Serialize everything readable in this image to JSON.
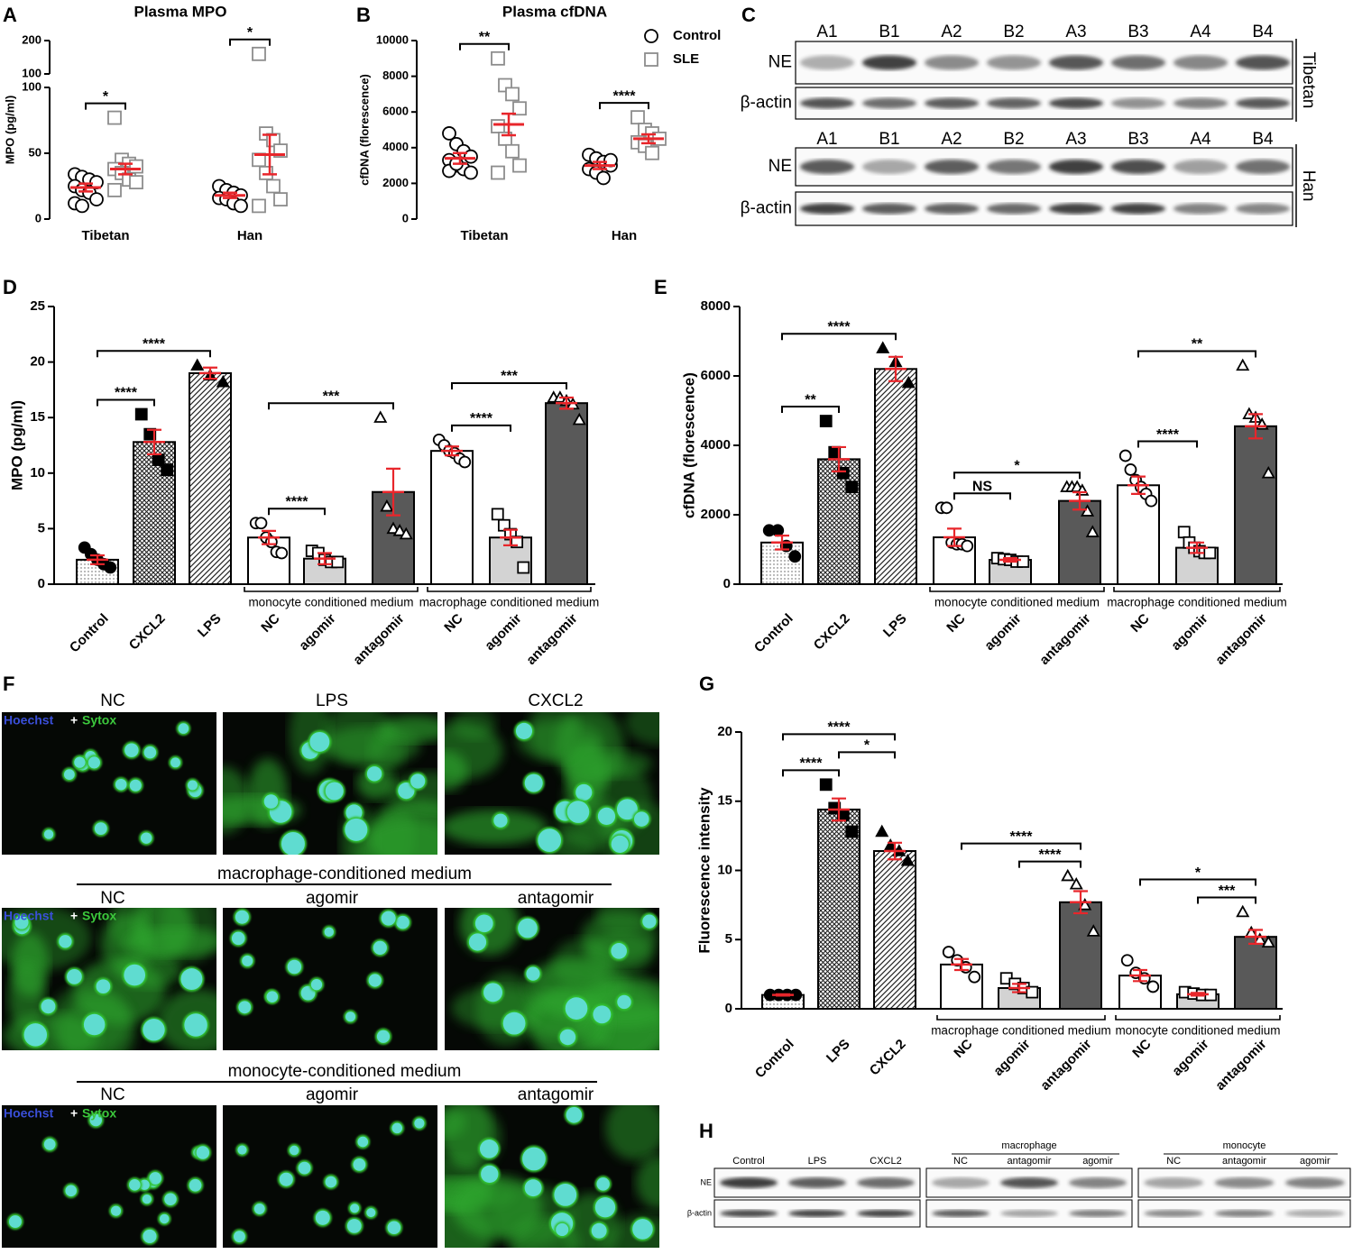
{
  "chart_data": [
    {
      "panel": "A",
      "type": "dot-plot",
      "title": "Plasma MPO",
      "y_label": "MPO (pg/ml)",
      "categories": [
        "Tibetan",
        "Han"
      ],
      "series": [
        {
          "color": "#000000",
          "marker": "open-circle",
          "values": [
            24,
            18
          ],
          "errors": [
            3,
            2
          ],
          "points": [
            [
              34,
              32,
              30,
              28,
              25,
              22,
              20,
              15,
              12,
              10
            ],
            [
              25,
              22,
              20,
              18,
              16,
              15,
              12,
              10
            ]
          ]
        },
        {
          "color": "#8c8c8c",
          "marker": "open-square",
          "values": [
            38,
            49
          ],
          "errors": [
            4,
            15
          ],
          "points": [
            [
              77,
              45,
              42,
              40,
              38,
              35,
              30,
              28,
              22
            ],
            [
              160,
              65,
              60,
              52,
              45,
              35,
              25,
              15,
              10
            ]
          ]
        }
      ],
      "mean_color": "#e8262b",
      "ylim": [
        0,
        100
      ],
      "yticks": [
        0,
        50,
        100
      ],
      "break_ylim": [
        100,
        200
      ],
      "break_yticks": [
        100,
        200
      ],
      "brackets": [
        {
          "category": 0,
          "label": "*"
        },
        {
          "category": 1,
          "label": "*"
        }
      ]
    },
    {
      "panel": "B",
      "type": "dot-plot",
      "title": "Plasma cfDNA",
      "y_label": "cfDNA (florescence)",
      "categories": [
        "Tibetan",
        "Han"
      ],
      "series": [
        {
          "name": "Control",
          "color": "#000000",
          "marker": "open-circle",
          "values": [
            3400,
            3000
          ],
          "errors": [
            300,
            200
          ],
          "points": [
            [
              4800,
              4200,
              3800,
              3500,
              3300,
              3000,
              2800,
              2600,
              2700,
              3100
            ],
            [
              3600,
              3400,
              3200,
              3000,
              2800,
              2600,
              2300,
              3300
            ]
          ]
        },
        {
          "name": "SLE",
          "color": "#8c8c8c",
          "marker": "open-square",
          "values": [
            5300,
            4500
          ],
          "errors": [
            600,
            250
          ],
          "points": [
            [
              9000,
              7500,
              7000,
              6200,
              5200,
              4500,
              3800,
              3000,
              2600
            ],
            [
              5700,
              5000,
              4800,
              4500,
              4300,
              4100,
              3700
            ]
          ]
        }
      ],
      "mean_color": "#e8262b",
      "legend": "upper right",
      "ylim": [
        0,
        10000
      ],
      "yticks": [
        0,
        2000,
        4000,
        6000,
        8000,
        10000
      ],
      "brackets": [
        {
          "category": 0,
          "label": "**"
        },
        {
          "category": 1,
          "label": "****"
        }
      ]
    },
    {
      "panel": "D",
      "type": "bar",
      "y_label": "MPO (pg/ml)",
      "categories": [
        "Control",
        "CXCL2",
        "LPS",
        "NC",
        "agomir",
        "antagomir",
        "NC",
        "agomir",
        "antagomir"
      ],
      "values": [
        2.2,
        12.8,
        19,
        4.2,
        2.3,
        8.3,
        12,
        4.2,
        16.3
      ],
      "errors": [
        0.4,
        1.1,
        0.5,
        0.6,
        0.5,
        2.1,
        0.4,
        0.7,
        0.5
      ],
      "points": [
        [
          3.3,
          2.7,
          2.2,
          1.8,
          1.5
        ],
        [
          15.3,
          13.5,
          11.2,
          10.3
        ],
        [
          19.7,
          18.8,
          18.2
        ],
        [
          5.5,
          5.5,
          4.2,
          3.8,
          2.9,
          2.8
        ],
        [
          3,
          2.8,
          2.2,
          2,
          2
        ],
        [
          15,
          7,
          5,
          4.8,
          4.5
        ],
        [
          13,
          12.5,
          12,
          11.8,
          11.3,
          11
        ],
        [
          6.3,
          5.3,
          4.5,
          3.8,
          1.5
        ],
        [
          16.8,
          16.8,
          16.5,
          16.2,
          14.8
        ]
      ],
      "markers": [
        "filled-circle",
        "filled-square",
        "filled-triangle",
        "open-circle",
        "open-square",
        "open-triangle",
        "open-circle",
        "open-square",
        "open-triangle"
      ],
      "colors": [
        "#ffffff",
        "#ffffff",
        "#ffffff",
        "#ffffff",
        "#d3d3d3",
        "#595959",
        "#ffffff",
        "#d3d3d3",
        "#595959"
      ],
      "patterns": [
        "dots",
        "crosshatch",
        "hatch",
        "none",
        "none",
        "none",
        "none",
        "none",
        "none"
      ],
      "error_color": "#e8262b",
      "ylim": [
        0,
        25
      ],
      "yticks": [
        0,
        5,
        10,
        15,
        20,
        25
      ],
      "groups": [
        {
          "label": "monocyte conditioned medium",
          "from": 3,
          "to": 5
        },
        {
          "label": "macrophage conditioned medium",
          "from": 6,
          "to": 8
        }
      ],
      "brackets": [
        {
          "from": 0,
          "to": 1,
          "label": "****"
        },
        {
          "from": 0,
          "to": 2,
          "label": "****"
        },
        {
          "from": 3,
          "to": 4,
          "label": "****"
        },
        {
          "from": 3,
          "to": 5,
          "label": "***"
        },
        {
          "from": 6,
          "to": 7,
          "label": "****"
        },
        {
          "from": 6,
          "to": 8,
          "label": "***"
        }
      ]
    },
    {
      "panel": "E",
      "type": "bar",
      "y_label": "cfDNA (florescence)",
      "categories": [
        "Control",
        "CXCL2",
        "LPS",
        "NC",
        "agomir",
        "antagomir",
        "NC",
        "agomir",
        "antagomir"
      ],
      "values": [
        1200,
        3600,
        6200,
        1350,
        700,
        2400,
        2850,
        1050,
        4550
      ],
      "errors": [
        200,
        350,
        350,
        250,
        50,
        250,
        250,
        150,
        350
      ],
      "points": [
        [
          1550,
          1550,
          1100,
          800
        ],
        [
          4700,
          3800,
          3200,
          2800
        ],
        [
          6800,
          6400,
          5800
        ],
        [
          2200,
          2200,
          1200,
          1150,
          1150,
          1100
        ],
        [
          750,
          720,
          700,
          650,
          650
        ],
        [
          2800,
          2800,
          2800,
          2700,
          2100,
          1500
        ],
        [
          3700,
          3300,
          3000,
          2800,
          2600,
          2400
        ],
        [
          1500,
          1200,
          1050,
          950,
          900,
          900
        ],
        [
          6300,
          4900,
          4800,
          4600,
          3200
        ]
      ],
      "markers": [
        "filled-circle",
        "filled-square",
        "filled-triangle",
        "open-circle",
        "open-square",
        "open-triangle",
        "open-circle",
        "open-square",
        "open-triangle"
      ],
      "colors": [
        "#ffffff",
        "#ffffff",
        "#ffffff",
        "#ffffff",
        "#d3d3d3",
        "#595959",
        "#ffffff",
        "#d3d3d3",
        "#595959"
      ],
      "patterns": [
        "dots",
        "crosshatch",
        "hatch",
        "none",
        "none",
        "none",
        "none",
        "none",
        "none"
      ],
      "error_color": "#e8262b",
      "ylim": [
        0,
        8000
      ],
      "yticks": [
        0,
        2000,
        4000,
        6000,
        8000
      ],
      "groups": [
        {
          "label": "monocyte conditioned medium",
          "from": 3,
          "to": 5
        },
        {
          "label": "macrophage conditioned medium",
          "from": 6,
          "to": 8
        }
      ],
      "brackets": [
        {
          "from": 0,
          "to": 1,
          "label": "**"
        },
        {
          "from": 0,
          "to": 2,
          "label": "****"
        },
        {
          "from": 3,
          "to": 4,
          "label": "NS"
        },
        {
          "from": 3,
          "to": 5,
          "label": "*"
        },
        {
          "from": 6,
          "to": 7,
          "label": "****"
        },
        {
          "from": 6,
          "to": 8,
          "label": "**"
        }
      ]
    },
    {
      "panel": "G",
      "type": "bar",
      "y_label": "Fluorescence intensity",
      "categories": [
        "Control",
        "LPS",
        "CXCL2",
        "NC",
        "agomir",
        "antagomir",
        "NC",
        "agomir",
        "antagomir"
      ],
      "values": [
        1,
        14.4,
        11.4,
        3.2,
        1.5,
        7.7,
        2.4,
        1.05,
        5.2
      ],
      "errors": [
        0.05,
        0.8,
        0.6,
        0.4,
        0.3,
        0.8,
        0.4,
        0.1,
        0.5
      ],
      "points": [
        [
          1,
          1,
          1,
          1
        ],
        [
          16.2,
          14.5,
          14,
          12.8
        ],
        [
          12.8,
          11.8,
          11.4,
          10.7
        ],
        [
          4.1,
          3.5,
          3,
          2.3
        ],
        [
          2.2,
          1.8,
          1.5,
          1.2
        ],
        [
          9.6,
          9,
          7.5,
          5.6
        ],
        [
          3.5,
          2.6,
          2.2,
          1.6
        ],
        [
          1.2,
          1.1,
          1,
          1
        ],
        [
          7,
          5.5,
          5,
          4.8
        ]
      ],
      "markers": [
        "filled-circle",
        "filled-square",
        "filled-triangle",
        "open-circle",
        "open-square",
        "open-triangle",
        "open-circle",
        "open-square",
        "open-triangle"
      ],
      "colors": [
        "#ffffff",
        "#ffffff",
        "#ffffff",
        "#ffffff",
        "#d3d3d3",
        "#595959",
        "#ffffff",
        "#d3d3d3",
        "#595959"
      ],
      "patterns": [
        "dots",
        "crosshatch",
        "hatch",
        "none",
        "none",
        "none",
        "none",
        "none",
        "none"
      ],
      "error_color": "#e8262b",
      "ylim": [
        0,
        20
      ],
      "yticks": [
        0,
        5,
        10,
        15,
        20
      ],
      "groups": [
        {
          "label": "macrophage conditioned medium",
          "from": 3,
          "to": 5
        },
        {
          "label": "monocyte conditioned medium",
          "from": 6,
          "to": 8
        }
      ],
      "brackets": [
        {
          "from": 0,
          "to": 1,
          "label": "****"
        },
        {
          "from": 0,
          "to": 2,
          "label": "****"
        },
        {
          "from": 1,
          "to": 2,
          "label": "*"
        },
        {
          "from": 3,
          "to": 5,
          "label": "****"
        },
        {
          "from": 4,
          "to": 5,
          "label": "****"
        },
        {
          "from": 6,
          "to": 8,
          "label": "*"
        },
        {
          "from": 7,
          "to": 8,
          "label": "***"
        }
      ]
    }
  ],
  "blot_c": {
    "panel": "C",
    "lanes": [
      "A1",
      "B1",
      "A2",
      "B2",
      "A3",
      "B3",
      "A4",
      "B4"
    ],
    "rows": [
      "NE",
      "β-actin"
    ],
    "groups": [
      "Tibetan",
      "Han"
    ]
  },
  "micrographs_f": {
    "panel": "F",
    "stain": [
      "Hoechst",
      "+",
      "Sytox"
    ],
    "rows": [
      {
        "lanes": [
          "NC",
          "LPS",
          "CXCL2"
        ]
      },
      {
        "title": "macrophage-conditioned medium",
        "lanes": [
          "NC",
          "agomir",
          "antagomir"
        ]
      },
      {
        "title": "monocyte-conditioned medium",
        "lanes": [
          "NC",
          "agomir",
          "antagomir"
        ]
      }
    ]
  },
  "blot_h": {
    "panel": "H",
    "rows": [
      "NE",
      "β-actin"
    ],
    "blocks": [
      {
        "lanes": [
          "Control",
          "LPS",
          "CXCL2"
        ]
      },
      {
        "title": "macrophage",
        "lanes": [
          "NC",
          "antagomir",
          "agomir"
        ]
      },
      {
        "title": "monocyte",
        "lanes": [
          "NC",
          "antagomir",
          "agomir"
        ]
      }
    ]
  }
}
